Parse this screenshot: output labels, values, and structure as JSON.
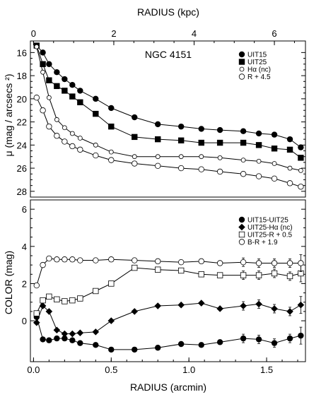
{
  "chart_data": [
    {
      "type": "line",
      "panel": "top",
      "annotation": "NGC 4151",
      "top_axis_label": "RADIUS (kpc)",
      "top_ticks": [
        "0",
        "2",
        "4",
        "6"
      ],
      "ylabel": "μ (mag / arcsecs ²)",
      "y_ticks": [
        "16",
        "18",
        "20",
        "22",
        "24",
        "26",
        "28"
      ],
      "ylim": [
        28.5,
        15.0
      ],
      "xlim": [
        -0.02,
        1.75
      ],
      "legend_placement": "top-right",
      "series": [
        {
          "name": "UIT15",
          "marker": "filled-circle",
          "x": [
            0.02,
            0.06,
            0.1,
            0.15,
            0.2,
            0.25,
            0.3,
            0.4,
            0.5,
            0.65,
            0.8,
            0.95,
            1.08,
            1.2,
            1.35,
            1.45,
            1.55,
            1.65,
            1.72
          ],
          "y": [
            15.4,
            16.0,
            17.0,
            17.7,
            18.3,
            18.8,
            19.3,
            20.0,
            20.8,
            21.6,
            22.2,
            22.4,
            22.6,
            22.7,
            22.8,
            23.0,
            23.1,
            23.5,
            24.2
          ]
        },
        {
          "name": "UIT25",
          "marker": "filled-square",
          "x": [
            0.02,
            0.06,
            0.1,
            0.15,
            0.2,
            0.25,
            0.3,
            0.4,
            0.5,
            0.65,
            0.8,
            0.95,
            1.08,
            1.2,
            1.35,
            1.45,
            1.55,
            1.65,
            1.72
          ],
          "y": [
            15.4,
            17.0,
            18.4,
            18.9,
            19.3,
            19.8,
            20.3,
            21.3,
            22.4,
            23.3,
            23.5,
            23.6,
            23.8,
            23.8,
            23.8,
            24.0,
            24.3,
            24.4,
            25.1
          ]
        },
        {
          "name": "Hα (nc)",
          "marker": "small-open-circle",
          "x": [
            0.02,
            0.06,
            0.1,
            0.15,
            0.2,
            0.25,
            0.3,
            0.4,
            0.5,
            0.65,
            0.8,
            0.95,
            1.08,
            1.2,
            1.35,
            1.45,
            1.55,
            1.65,
            1.72
          ],
          "y": [
            15.5,
            17.7,
            19.9,
            21.8,
            22.5,
            23.0,
            23.4,
            24.0,
            24.6,
            25.0,
            25.0,
            25.0,
            25.0,
            25.1,
            25.3,
            25.4,
            25.6,
            26.0,
            26.2
          ]
        },
        {
          "name": "R + 4.5",
          "marker": "open-circle",
          "x": [
            0.02,
            0.06,
            0.1,
            0.15,
            0.2,
            0.25,
            0.3,
            0.4,
            0.5,
            0.65,
            0.8,
            0.95,
            1.08,
            1.2,
            1.35,
            1.45,
            1.55,
            1.65,
            1.72
          ],
          "y": [
            19.9,
            21.0,
            22.4,
            23.2,
            23.7,
            24.1,
            24.4,
            24.9,
            25.3,
            25.6,
            25.8,
            26.0,
            26.1,
            26.3,
            26.5,
            26.7,
            26.9,
            27.3,
            27.6
          ]
        }
      ]
    },
    {
      "type": "line",
      "panel": "bottom",
      "xlabel": "RADIUS (arcmin)",
      "x_ticks": [
        "0.0",
        "0.5",
        "1.0",
        "1.5"
      ],
      "ylabel": "COLOR (mag)",
      "y_ticks": [
        "0",
        "2",
        "4",
        "6"
      ],
      "ylim": [
        -2.2,
        6.5
      ],
      "xlim": [
        -0.02,
        1.75
      ],
      "legend_placement": "top-right",
      "series": [
        {
          "name": "UIT15-UIT25",
          "marker": "filled-circle",
          "x": [
            0.02,
            0.06,
            0.1,
            0.15,
            0.2,
            0.25,
            0.3,
            0.4,
            0.5,
            0.65,
            0.8,
            0.95,
            1.08,
            1.2,
            1.35,
            1.45,
            1.55,
            1.65,
            1.72
          ],
          "y": [
            0.2,
            -1.0,
            -1.05,
            -0.95,
            -0.95,
            -1.05,
            -1.2,
            -1.3,
            -1.55,
            -1.55,
            -1.45,
            -1.25,
            -1.3,
            -1.15,
            -0.95,
            -1.0,
            -1.2,
            -0.95,
            -0.8
          ]
        },
        {
          "name": "UIT25-Hα (nc)",
          "marker": "filled-diamond",
          "x": [
            0.02,
            0.06,
            0.1,
            0.15,
            0.2,
            0.25,
            0.3,
            0.4,
            0.5,
            0.65,
            0.8,
            0.95,
            1.08,
            1.2,
            1.35,
            1.45,
            1.55,
            1.65,
            1.72
          ],
          "y": [
            -0.1,
            0.8,
            0.5,
            -0.5,
            -0.7,
            -0.7,
            -0.65,
            -0.6,
            0.0,
            0.5,
            0.8,
            0.85,
            0.95,
            0.65,
            0.8,
            0.9,
            0.65,
            0.5,
            0.85
          ]
        },
        {
          "name": "UIT25-R + 0.5",
          "marker": "open-square",
          "x": [
            0.02,
            0.06,
            0.1,
            0.15,
            0.2,
            0.25,
            0.3,
            0.4,
            0.5,
            0.65,
            0.8,
            0.95,
            1.08,
            1.2,
            1.35,
            1.45,
            1.55,
            1.65,
            1.72
          ],
          "y": [
            0.4,
            1.1,
            1.3,
            1.15,
            1.05,
            1.1,
            1.2,
            1.6,
            2.0,
            2.85,
            2.75,
            2.7,
            2.5,
            2.45,
            2.45,
            2.45,
            2.55,
            2.4,
            2.55
          ]
        },
        {
          "name": "B-R + 1.9",
          "marker": "open-circle",
          "x": [
            0.02,
            0.06,
            0.1,
            0.15,
            0.2,
            0.25,
            0.3,
            0.4,
            0.5,
            0.65,
            0.8,
            0.95,
            1.08,
            1.2,
            1.35,
            1.45,
            1.55,
            1.65,
            1.72
          ],
          "y": [
            1.9,
            3.0,
            3.35,
            3.3,
            3.3,
            3.3,
            3.25,
            3.25,
            3.3,
            3.25,
            3.2,
            3.15,
            3.2,
            3.1,
            3.15,
            3.1,
            3.1,
            3.1,
            3.1
          ]
        }
      ]
    }
  ]
}
